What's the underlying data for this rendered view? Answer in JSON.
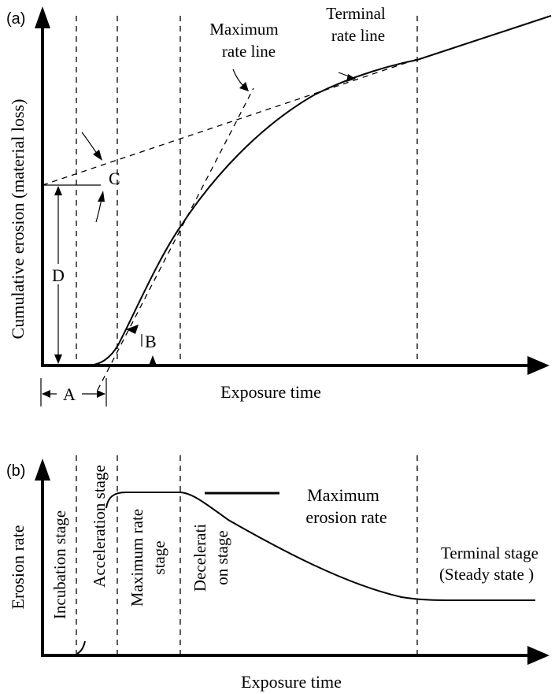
{
  "panel_a": {
    "panel_label": "(a)",
    "y_axis_label": "Cumulative erosion (material loss)",
    "x_axis_label": "Exposure time",
    "terminal_rate_line_label": [
      "Terminal",
      "rate line"
    ],
    "maximum_rate_line_label": [
      "Maximum",
      "rate line"
    ],
    "marker_a": "A",
    "marker_b": "B",
    "marker_c": "C",
    "marker_d": "D"
  },
  "panel_b": {
    "panel_label": "(b)",
    "y_axis_label": "Erosion rate",
    "x_axis_label": "Exposure time",
    "max_rate_label": [
      "Maximum",
      "erosion rate"
    ],
    "stages": {
      "incubation": [
        "Incubation stage"
      ],
      "acceleration": [
        "Acceleration stage"
      ],
      "maximum_rate": [
        "Maximum rate",
        "stage"
      ],
      "deceleration": [
        "Decelerati",
        "on stage"
      ],
      "terminal": [
        "Terminal stage",
        "(Steady state )"
      ]
    }
  },
  "colors": {
    "ink": "#000000",
    "background": "#ffffff"
  }
}
